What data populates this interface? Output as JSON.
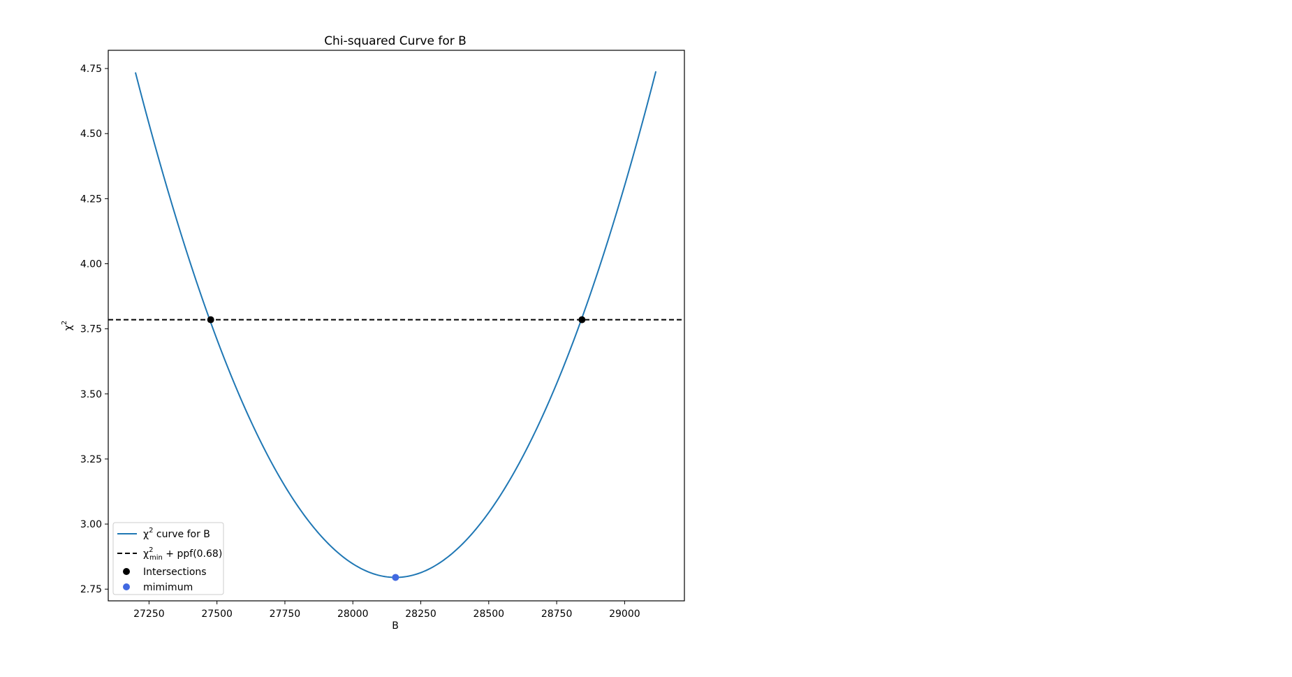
{
  "chart_data": {
    "type": "line",
    "title": "Chi-squared Curve for B",
    "xlabel": "B",
    "ylabel": "χ",
    "ylabel_sup": "2",
    "xlim": [
      27100,
      29220
    ],
    "ylim": [
      2.705,
      4.82
    ],
    "xticks": [
      27250,
      27500,
      27750,
      28000,
      28250,
      28500,
      28750,
      29000
    ],
    "xtick_labels": [
      "27250",
      "27500",
      "27750",
      "28000",
      "28250",
      "28500",
      "28750",
      "29000"
    ],
    "yticks": [
      2.75,
      3.0,
      3.25,
      3.5,
      3.75,
      4.0,
      4.25,
      4.5,
      4.75
    ],
    "ytick_labels": [
      "2.75",
      "3.00",
      "3.25",
      "3.50",
      "3.75",
      "4.00",
      "4.25",
      "4.50",
      "4.75"
    ],
    "grid": false,
    "legend_position": "lower-left",
    "curve": {
      "x_min": 27200,
      "x_max": 29115,
      "vertex_x": 28157,
      "vertex_y": 2.795,
      "color": "#1f77b4"
    },
    "threshold": {
      "y": 3.785,
      "color": "#000000",
      "style": "dashed"
    },
    "intersections": {
      "x": [
        27477,
        28843
      ],
      "y": [
        3.785,
        3.785
      ],
      "color": "#000000"
    },
    "minimum": {
      "x": 28157,
      "y": 2.795,
      "color": "#4169e1"
    },
    "legend": {
      "curve_label_pre": "χ",
      "curve_label_sup": "2",
      "curve_label_post": " curve for B",
      "threshold_label_pre": "χ",
      "threshold_label_sup": "2",
      "threshold_label_sub": "min",
      "threshold_label_post": " + ppf(0.68)",
      "intersections_label": "Intersections",
      "minimum_label": "mimimum"
    }
  }
}
